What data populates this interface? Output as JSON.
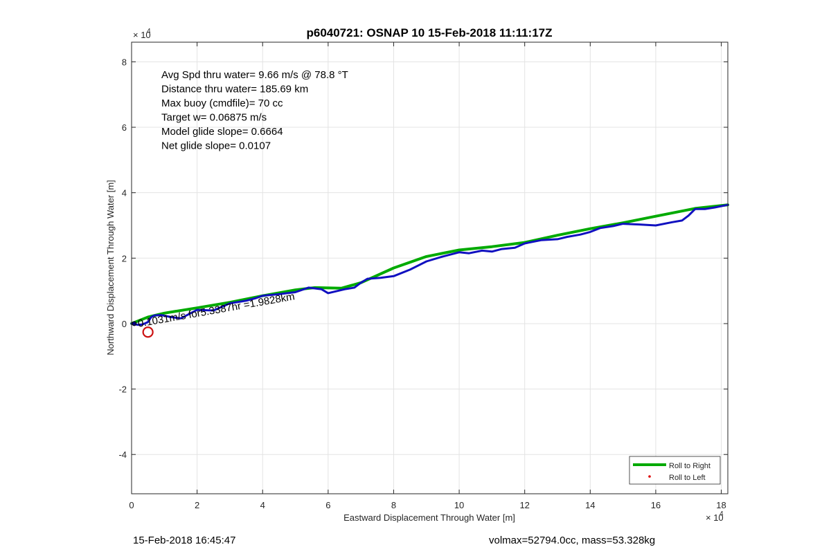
{
  "chart_data": {
    "type": "line",
    "title": "p6040721: OSNAP 10 15-Feb-2018 11:11:17Z",
    "xlabel": "Eastward Displacement Through Water [m]",
    "ylabel": "Northward Displacement Through Water [m]",
    "xlim": [
      0,
      182000
    ],
    "ylim": [
      -52000,
      86000
    ],
    "x_exponent_label": "× 10",
    "x_exponent_power": "4",
    "y_exponent_label": "× 10",
    "y_exponent_power": "4",
    "x_ticks": [
      0,
      20000,
      40000,
      60000,
      80000,
      100000,
      120000,
      140000,
      160000,
      180000
    ],
    "x_tick_labels": [
      "0",
      "2",
      "4",
      "6",
      "8",
      "10",
      "12",
      "14",
      "16",
      "18"
    ],
    "y_ticks": [
      -40000,
      -20000,
      0,
      20000,
      40000,
      60000,
      80000
    ],
    "y_tick_labels": [
      "-4",
      "-2",
      "0",
      "2",
      "4",
      "6",
      "8"
    ],
    "grid": true,
    "legend_position": "bottom-right",
    "legend": [
      {
        "label": "Roll to Right",
        "color": "#00aa00",
        "marker": "line"
      },
      {
        "label": "Roll to Left",
        "color": "#dd0000",
        "marker": "dot"
      }
    ],
    "stats_text": [
      "Avg Spd thru water=  9.66 m/s @  78.8 °T",
      "Distance thru water= 185.69 km",
      "Max buoy (cmdfile)= 70 cc",
      "Target w= 0.06875 m/s",
      "Model glide slope= 0.6664",
      "Net glide slope= 0.0107"
    ],
    "annotation": "0.1031m/s for5.3387hr =1.9828km",
    "series": [
      {
        "name": "Roll to Right",
        "color": "#00aa00",
        "x": [
          0,
          5000,
          10000,
          20000,
          30000,
          40000,
          50000,
          56000,
          64000,
          70000,
          80000,
          90000,
          100000,
          110000,
          120000,
          130000,
          140000,
          150000,
          160000,
          172000,
          182000
        ],
        "y": [
          0,
          2000,
          3200,
          4800,
          6500,
          8500,
          10300,
          11000,
          10800,
          12500,
          17000,
          20500,
          22500,
          23500,
          24800,
          27000,
          29000,
          30800,
          32800,
          35200,
          36300
        ]
      },
      {
        "name": "Track",
        "color": "#1010c0",
        "x": [
          0,
          1000,
          2000,
          3000,
          4000,
          5000,
          6000,
          7000,
          9000,
          12000,
          15000,
          20000,
          25000,
          30000,
          35000,
          38000,
          40000,
          45000,
          50000,
          54000,
          58000,
          60000,
          65000,
          68000,
          70000,
          72000,
          76000,
          80000,
          85000,
          90000,
          95000,
          100000,
          103000,
          107000,
          110000,
          113000,
          117000,
          120000,
          125000,
          130000,
          133000,
          137000,
          140000,
          143000,
          147000,
          150000,
          155000,
          160000,
          165000,
          168000,
          170000,
          172000,
          175000,
          178000,
          182000
        ],
        "y": [
          0,
          -200,
          -400,
          -300,
          0,
          500,
          2000,
          2500,
          2600,
          2000,
          1600,
          4200,
          4000,
          6200,
          7000,
          7800,
          8500,
          9000,
          9600,
          11000,
          10500,
          9300,
          10500,
          11000,
          12500,
          13700,
          14000,
          14500,
          16500,
          19000,
          20500,
          21800,
          21500,
          22300,
          22000,
          22800,
          23200,
          24500,
          25500,
          25800,
          26500,
          27200,
          28000,
          29200,
          29800,
          30500,
          30300,
          30000,
          31000,
          31500,
          33000,
          35000,
          35000,
          35500,
          36300
        ]
      }
    ],
    "markers": [
      {
        "name": "start",
        "color": "#000080",
        "x": 800,
        "y": 0
      },
      {
        "name": "circle",
        "color": "#cc1111",
        "x": 5000,
        "y": -2600
      }
    ]
  },
  "footer": {
    "left": "15-Feb-2018 16:45:47",
    "right": "volmax=52794.0cc, mass=53.328kg"
  }
}
